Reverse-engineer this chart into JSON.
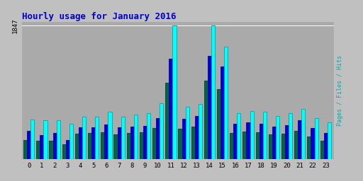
{
  "title": "Hourly usage for January 2016",
  "hours": [
    0,
    1,
    2,
    3,
    4,
    5,
    6,
    7,
    8,
    9,
    10,
    11,
    12,
    13,
    14,
    15,
    16,
    17,
    18,
    19,
    20,
    21,
    22,
    23
  ],
  "hits": [
    550,
    540,
    540,
    490,
    590,
    590,
    660,
    590,
    620,
    640,
    770,
    1847,
    730,
    760,
    1847,
    1560,
    640,
    670,
    660,
    600,
    640,
    700,
    570,
    510
  ],
  "files": [
    390,
    330,
    360,
    270,
    440,
    440,
    480,
    440,
    450,
    460,
    570,
    1390,
    560,
    600,
    1430,
    1280,
    490,
    510,
    490,
    450,
    470,
    540,
    430,
    360
  ],
  "pages": [
    270,
    260,
    260,
    210,
    350,
    360,
    370,
    340,
    360,
    370,
    430,
    1060,
    420,
    450,
    1090,
    970,
    360,
    380,
    370,
    340,
    350,
    390,
    320,
    260
  ],
  "color_hits": "#00ffff",
  "color_files": "#0000dd",
  "color_pages": "#006644",
  "bg_plot": "#aaaaaa",
  "bg_fig": "#c0c0c0",
  "title_color": "#0000cc",
  "bar_width": 0.28,
  "ylim_max": 1900,
  "ytick_val": 1847,
  "right_label": "Pages / Files / Hits",
  "right_label_color": "#00aaaa",
  "edgecolor_hits": "#009999",
  "edgecolor_files": "#000077",
  "edgecolor_pages": "#003322"
}
